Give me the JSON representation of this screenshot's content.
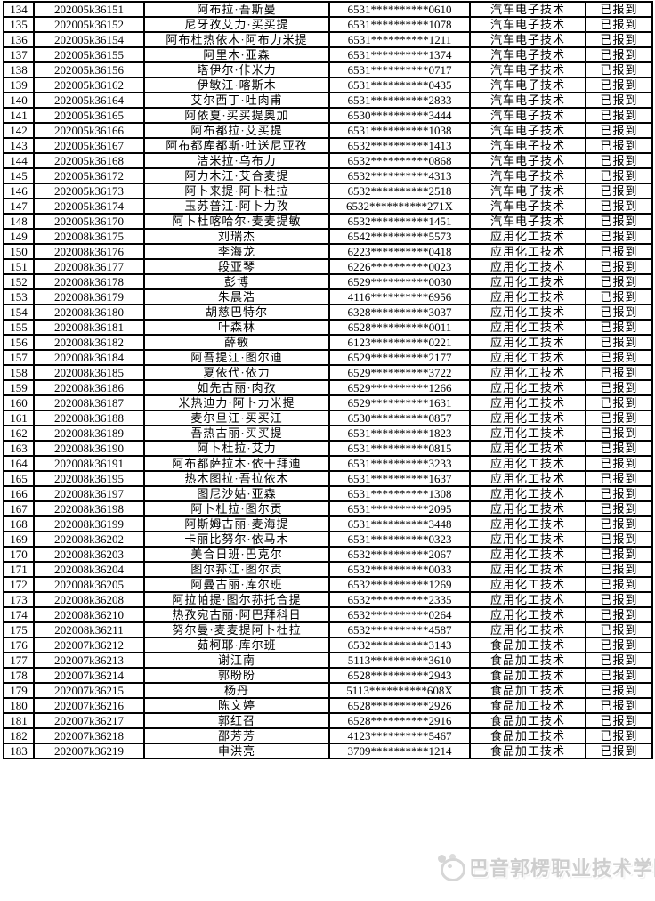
{
  "table": {
    "columns": [
      "row_number",
      "student_id",
      "name",
      "id_number",
      "major",
      "status"
    ],
    "rows": [
      [
        "134",
        "202005k36151",
        "阿布拉·吾斯曼",
        "6531**********0610",
        "汽车电子技术",
        "已报到"
      ],
      [
        "135",
        "202005k36152",
        "尼牙孜艾力·买买提",
        "6531**********1078",
        "汽车电子技术",
        "已报到"
      ],
      [
        "136",
        "202005k36154",
        "阿布杜热依木·阿布力米提",
        "6531**********1211",
        "汽车电子技术",
        "已报到"
      ],
      [
        "137",
        "202005k36155",
        "阿里木·亚森",
        "6531**********1374",
        "汽车电子技术",
        "已报到"
      ],
      [
        "138",
        "202005k36156",
        "塔伊尔·佧米力",
        "6531**********0717",
        "汽车电子技术",
        "已报到"
      ],
      [
        "139",
        "202005k36162",
        "伊敏江·喀斯木",
        "6531**********0435",
        "汽车电子技术",
        "已报到"
      ],
      [
        "140",
        "202005k36164",
        "艾尔西丁·吐肉甫",
        "6531**********2833",
        "汽车电子技术",
        "已报到"
      ],
      [
        "141",
        "202005k36165",
        "阿依夏·买买提奥加",
        "6530**********3444",
        "汽车电子技术",
        "已报到"
      ],
      [
        "142",
        "202005k36166",
        "阿布都拉·艾买提",
        "6531**********1038",
        "汽车电子技术",
        "已报到"
      ],
      [
        "143",
        "202005k36167",
        "阿布都库都斯·吐送尼亚孜",
        "6532**********1413",
        "汽车电子技术",
        "已报到"
      ],
      [
        "144",
        "202005k36168",
        "洁米拉·乌布力",
        "6532**********0868",
        "汽车电子技术",
        "已报到"
      ],
      [
        "145",
        "202005k36172",
        "阿力木江·艾合麦提",
        "6532**********4313",
        "汽车电子技术",
        "已报到"
      ],
      [
        "146",
        "202005k36173",
        "阿卜来提·阿卜杜拉",
        "6532**********2518",
        "汽车电子技术",
        "已报到"
      ],
      [
        "147",
        "202005k36174",
        "玉苏普江·阿卜力孜",
        "6532**********271X",
        "汽车电子技术",
        "已报到"
      ],
      [
        "148",
        "202005k36170",
        "阿卜杜喀哈尔·麦麦提敏",
        "6532**********1451",
        "汽车电子技术",
        "已报到"
      ],
      [
        "149",
        "202008k36175",
        "刘瑞杰",
        "6542**********5573",
        "应用化工技术",
        "已报到"
      ],
      [
        "150",
        "202008k36176",
        "李海龙",
        "6223**********0418",
        "应用化工技术",
        "已报到"
      ],
      [
        "151",
        "202008k36177",
        "段亚琴",
        "6226**********0023",
        "应用化工技术",
        "已报到"
      ],
      [
        "152",
        "202008k36178",
        "彭博",
        "6529**********0030",
        "应用化工技术",
        "已报到"
      ],
      [
        "153",
        "202008k36179",
        "朱晨浩",
        "4116**********6956",
        "应用化工技术",
        "已报到"
      ],
      [
        "154",
        "202008k36180",
        "胡慈巴特尔",
        "6328**********3037",
        "应用化工技术",
        "已报到"
      ],
      [
        "155",
        "202008k36181",
        "叶森林",
        "6528**********0011",
        "应用化工技术",
        "已报到"
      ],
      [
        "156",
        "202008k36182",
        "薛敏",
        "6123**********0221",
        "应用化工技术",
        "已报到"
      ],
      [
        "157",
        "202008k36184",
        "阿吾提江·图尔迪",
        "6529**********2177",
        "应用化工技术",
        "已报到"
      ],
      [
        "158",
        "202008k36185",
        "夏依代·依力",
        "6529**********3722",
        "应用化工技术",
        "已报到"
      ],
      [
        "159",
        "202008k36186",
        "如先古丽·肉孜",
        "6529**********1266",
        "应用化工技术",
        "已报到"
      ],
      [
        "160",
        "202008k36187",
        "米热迪力·阿卜力米提",
        "6529**********1631",
        "应用化工技术",
        "已报到"
      ],
      [
        "161",
        "202008k36188",
        "麦尔旦江·买买江",
        "6530**********0857",
        "应用化工技术",
        "已报到"
      ],
      [
        "162",
        "202008k36189",
        "吾热古丽·买买提",
        "6531**********1823",
        "应用化工技术",
        "已报到"
      ],
      [
        "163",
        "202008k36190",
        "阿卜杜拉·艾力",
        "6531**********0815",
        "应用化工技术",
        "已报到"
      ],
      [
        "164",
        "202008k36191",
        "阿布都萨拉木·依干拜迪",
        "6531**********3233",
        "应用化工技术",
        "已报到"
      ],
      [
        "165",
        "202008k36195",
        "热木图拉·吾拉依木",
        "6531**********1637",
        "应用化工技术",
        "已报到"
      ],
      [
        "166",
        "202008k36197",
        "图尼沙姑·亚森",
        "6531**********1308",
        "应用化工技术",
        "已报到"
      ],
      [
        "167",
        "202008k36198",
        "阿卜杜拉·图尔贡",
        "6531**********2095",
        "应用化工技术",
        "已报到"
      ],
      [
        "168",
        "202008k36199",
        "阿斯姆古丽·麦海提",
        "6531**********3448",
        "应用化工技术",
        "已报到"
      ],
      [
        "169",
        "202008k36202",
        "卡丽比努尔·依马木",
        "6531**********0323",
        "应用化工技术",
        "已报到"
      ],
      [
        "170",
        "202008k36203",
        "美合日班·巴克尔",
        "6532**********2067",
        "应用化工技术",
        "已报到"
      ],
      [
        "171",
        "202008k36204",
        "图尔荪江·图尔贡",
        "6532**********0033",
        "应用化工技术",
        "已报到"
      ],
      [
        "172",
        "202008k36205",
        "阿曼古丽·库尔班",
        "6532**********1269",
        "应用化工技术",
        "已报到"
      ],
      [
        "173",
        "202008k36208",
        "阿拉帕提·图尔荪托合提",
        "6532**********2335",
        "应用化工技术",
        "已报到"
      ],
      [
        "174",
        "202008k36210",
        "热孜宛古丽·阿巴拜科日",
        "6532**********0264",
        "应用化工技术",
        "已报到"
      ],
      [
        "175",
        "202008k36211",
        "努尔曼·麦麦提阿卜杜拉",
        "6532**********4587",
        "应用化工技术",
        "已报到"
      ],
      [
        "176",
        "202007k36212",
        "茹柯耶·库尔班",
        "6532**********3143",
        "食品加工技术",
        "已报到"
      ],
      [
        "177",
        "202007k36213",
        "谢江南",
        "5113**********3610",
        "食品加工技术",
        "已报到"
      ],
      [
        "178",
        "202007k36214",
        "郭盼盼",
        "6528**********2943",
        "食品加工技术",
        "已报到"
      ],
      [
        "179",
        "202007k36215",
        "杨丹",
        "5113**********608X",
        "食品加工技术",
        "已报到"
      ],
      [
        "180",
        "202007k36216",
        "陈文婷",
        "6528**********2926",
        "食品加工技术",
        "已报到"
      ],
      [
        "181",
        "202007k36217",
        "郭红召",
        "6528**********2916",
        "食品加工技术",
        "已报到"
      ],
      [
        "182",
        "202007k36218",
        "邵芳芳",
        "4123**********5467",
        "食品加工技术",
        "已报到"
      ],
      [
        "183",
        "202007k36219",
        "申洪亮",
        "3709**********1214",
        "食品加工技术",
        "已报到"
      ]
    ]
  },
  "watermark": {
    "logo_icon": "college-badge-icon",
    "text": "巴音郭楞职业技术学院"
  },
  "colors": {
    "background": "#ffffff",
    "border": "#000000",
    "text": "#000000",
    "watermark": "#cecece"
  }
}
